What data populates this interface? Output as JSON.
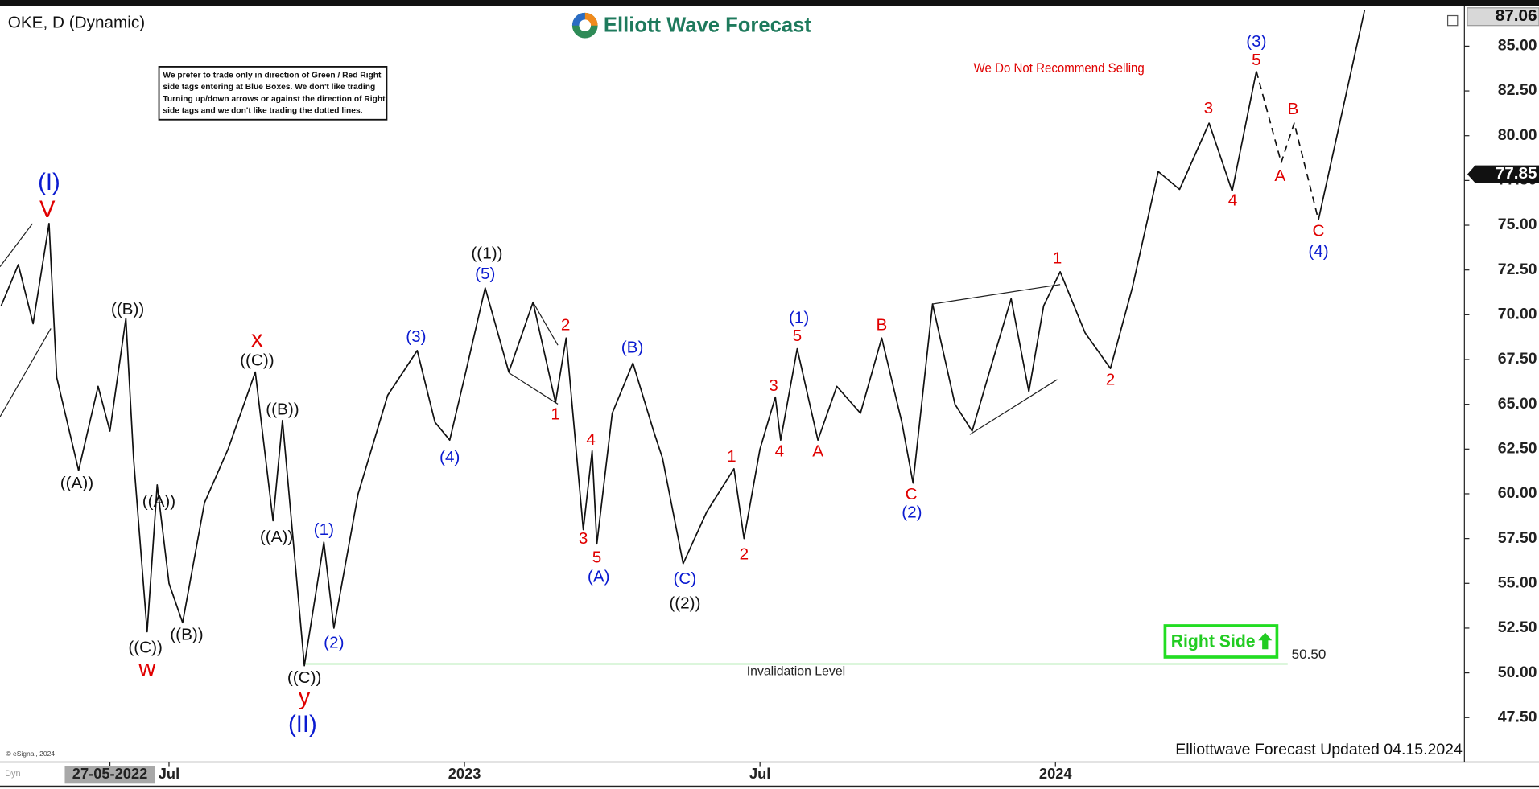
{
  "chart_data": {
    "type": "line",
    "symbol": "OKE, D (Dynamic)",
    "brand": "Elliott Wave Forecast",
    "notice": [
      "We prefer to trade only in direction of Green / Red Right",
      "side tags entering at Blue Boxes. We don't like trading",
      "Turning up/down arrows or against the direction of Right",
      "side tags and we don't like trading the dotted lines."
    ],
    "note": "We Do Not Recommend Selling",
    "badge": "Right Side",
    "footer": "Elliottwave Forecast Updated 04.15.2024",
    "copyright": "© eSignal, 2024",
    "mode": "Dyn",
    "xlim": [
      2022.214,
      2024.692
    ],
    "xticks": [
      {
        "value": 2022.4,
        "label": "27-05-2022"
      },
      {
        "value": 2022.5,
        "label": "Jul"
      },
      {
        "value": 2023,
        "label": "2023"
      },
      {
        "value": 2023.5,
        "label": "Jul"
      },
      {
        "value": 2024,
        "label": "2024"
      }
    ],
    "ylim": [
      45.13,
      87.14
    ],
    "yticks": [
      {
        "value": 47.5,
        "label": "47.50"
      },
      {
        "value": 50,
        "label": "50.00"
      },
      {
        "value": 52.5,
        "label": "52.50"
      },
      {
        "value": 55,
        "label": "55.00"
      },
      {
        "value": 57.5,
        "label": "57.50"
      },
      {
        "value": 60,
        "label": "60.00"
      },
      {
        "value": 62.5,
        "label": "62.50"
      },
      {
        "value": 65,
        "label": "65.00"
      },
      {
        "value": 67.5,
        "label": "67.50"
      },
      {
        "value": 70,
        "label": "70.00"
      },
      {
        "value": 72.5,
        "label": "72.50"
      },
      {
        "value": 75,
        "label": "75.00"
      },
      {
        "value": 77.5,
        "label": "77.50"
      },
      {
        "value": 80,
        "label": "80.00"
      },
      {
        "value": 82.5,
        "label": "82.50"
      },
      {
        "value": 85,
        "label": "85.00"
      }
    ],
    "high_price": 87.06,
    "last_price": 77.85,
    "series": [
      {
        "color": "#111111",
        "style": "solid",
        "x": [
          2022.216,
          2022.245,
          2022.27,
          2022.297,
          2022.31,
          2022.347,
          2022.38,
          2022.4,
          2022.427,
          2022.44,
          2022.463,
          2022.48,
          2022.5,
          2022.523,
          2022.56,
          2022.6,
          2022.646,
          2022.676,
          2022.692,
          2022.729,
          2022.762,
          2022.779,
          2022.82,
          2022.87,
          2022.92,
          2022.95,
          2022.975,
          2023.0,
          2023.035,
          2023.075,
          2023.116,
          2023.154,
          2023.172,
          2023.201,
          2023.216,
          2023.224,
          2023.25,
          2023.285,
          2023.32,
          2023.335,
          2023.37,
          2023.41,
          2023.456,
          2023.473,
          2023.5,
          2023.526,
          2023.535,
          2023.563,
          2023.598,
          2023.63,
          2023.67,
          2023.706,
          2023.74,
          2023.759,
          2023.792,
          2023.83,
          2023.859,
          2023.89,
          2023.925,
          2023.955,
          2023.98,
          2024.008,
          2024.05,
          2024.093,
          2024.13,
          2024.174,
          2024.21,
          2024.26,
          2024.299
        ],
        "values": [
          70.5,
          72.8,
          69.5,
          75.1,
          66.5,
          61.3,
          66.0,
          63.5,
          69.8,
          62.0,
          52.3,
          60.5,
          55.0,
          52.8,
          59.5,
          62.5,
          66.8,
          58.5,
          64.1,
          50.4,
          57.3,
          52.5,
          60.0,
          65.5,
          68.0,
          64.0,
          63.0,
          66.5,
          71.5,
          66.8,
          70.7,
          65.1,
          68.7,
          58.0,
          62.4,
          57.2,
          64.5,
          67.3,
          63.5,
          62.0,
          56.1,
          59.0,
          61.4,
          57.5,
          62.5,
          65.4,
          63.0,
          68.1,
          63.0,
          66.0,
          64.5,
          68.7,
          64.0,
          60.6,
          70.6,
          65.0,
          63.5,
          67.0,
          70.9,
          65.7,
          70.5,
          72.4,
          69.0,
          67.0,
          71.5,
          78.0,
          77.0,
          80.7,
          76.9
        ]
      },
      {
        "color": "#111111",
        "style": "solid",
        "x": [
          2024.299,
          2024.34,
          2024.4,
          2024.445,
          2024.523
        ],
        "values": [
          76.9,
          83.6,
          null,
          75.3,
          87.0
        ]
      },
      {
        "color": "#111111",
        "style": "dashed",
        "x": [
          2024.34,
          2024.382,
          2024.404,
          2024.445
        ],
        "values": [
          83.6,
          78.5,
          80.7,
          75.3
        ]
      }
    ],
    "trendlines": [
      {
        "x": [
          2022.214,
          2022.269
        ],
        "y": [
          72.68,
          75.09
        ]
      },
      {
        "x": [
          2022.214,
          2022.3
        ],
        "y": [
          64.3,
          69.23
        ]
      },
      {
        "x": [
          2023.075,
          2023.158
        ],
        "y": [
          66.76,
          65.01
        ]
      },
      {
        "x": [
          2023.116,
          2023.158
        ],
        "y": [
          70.7,
          68.3
        ]
      },
      {
        "x": [
          2023.792,
          2024.008
        ],
        "y": [
          70.6,
          71.69
        ]
      },
      {
        "x": [
          2023.855,
          2024.003
        ],
        "y": [
          63.31,
          66.38
        ]
      }
    ],
    "invalidation": {
      "value": 50.5,
      "label": "50.50",
      "text": "Invalidation Level",
      "x": [
        2022.729,
        2024.393
      ],
      "color": "#77dd77"
    },
    "annotations": [
      {
        "text": "(I)",
        "x": 2022.297,
        "y": 77.33,
        "color": "#0a1ad0",
        "large": true
      },
      {
        "text": "V",
        "x": 2022.294,
        "y": 75.8,
        "color": "#e00000",
        "large": true
      },
      {
        "text": "((A))",
        "x": 2022.344,
        "y": 60.57,
        "color": "#111111"
      },
      {
        "text": "((B))",
        "x": 2022.43,
        "y": 70.27,
        "color": "#111111"
      },
      {
        "text": "((A))",
        "x": 2022.483,
        "y": 59.53,
        "color": "#111111"
      },
      {
        "text": "((C))",
        "x": 2022.46,
        "y": 51.37,
        "color": "#111111"
      },
      {
        "text": "((B))",
        "x": 2022.53,
        "y": 52.09,
        "color": "#111111"
      },
      {
        "text": "w",
        "x": 2022.463,
        "y": 50.17,
        "color": "#e00000",
        "large": true
      },
      {
        "text": "x",
        "x": 2022.649,
        "y": 68.57,
        "color": "#e00000",
        "large": true
      },
      {
        "text": "((C))",
        "x": 2022.649,
        "y": 67.42,
        "color": "#111111"
      },
      {
        "text": "((B))",
        "x": 2022.692,
        "y": 64.68,
        "color": "#111111"
      },
      {
        "text": "((A))",
        "x": 2022.682,
        "y": 57.56,
        "color": "#111111"
      },
      {
        "text": "(1)",
        "x": 2022.762,
        "y": 57.95,
        "color": "#0a1ad0"
      },
      {
        "text": "(2)",
        "x": 2022.779,
        "y": 51.65,
        "color": "#0a1ad0"
      },
      {
        "text": "((C))",
        "x": 2022.729,
        "y": 49.68,
        "color": "#111111"
      },
      {
        "text": "y",
        "x": 2022.729,
        "y": 48.58,
        "color": "#e00000",
        "large": true
      },
      {
        "text": "(II)",
        "x": 2022.726,
        "y": 47.05,
        "color": "#0a1ad0",
        "large": true
      },
      {
        "text": "(3)",
        "x": 2022.918,
        "y": 68.73,
        "color": "#0a1ad0"
      },
      {
        "text": "(4)",
        "x": 2022.975,
        "y": 62.0,
        "color": "#0a1ad0"
      },
      {
        "text": "((1))",
        "x": 2023.038,
        "y": 73.39,
        "color": "#111111"
      },
      {
        "text": "(5)",
        "x": 2023.035,
        "y": 72.24,
        "color": "#0a1ad0"
      },
      {
        "text": "2",
        "x": 2023.171,
        "y": 69.39,
        "color": "#e00000"
      },
      {
        "text": "1",
        "x": 2023.154,
        "y": 64.41,
        "color": "#e00000"
      },
      {
        "text": "4",
        "x": 2023.214,
        "y": 62.98,
        "color": "#e00000"
      },
      {
        "text": "3",
        "x": 2023.201,
        "y": 57.45,
        "color": "#e00000"
      },
      {
        "text": "5",
        "x": 2023.224,
        "y": 56.41,
        "color": "#e00000"
      },
      {
        "text": "(A)",
        "x": 2023.227,
        "y": 55.32,
        "color": "#0a1ad0"
      },
      {
        "text": "(B)",
        "x": 2023.284,
        "y": 68.13,
        "color": "#0a1ad0"
      },
      {
        "text": "(C)",
        "x": 2023.373,
        "y": 55.21,
        "color": "#0a1ad0"
      },
      {
        "text": "((2))",
        "x": 2023.373,
        "y": 53.84,
        "color": "#111111"
      },
      {
        "text": "1",
        "x": 2023.452,
        "y": 62.05,
        "color": "#e00000"
      },
      {
        "text": "2",
        "x": 2023.473,
        "y": 56.58,
        "color": "#e00000"
      },
      {
        "text": "3",
        "x": 2023.523,
        "y": 66.0,
        "color": "#e00000"
      },
      {
        "text": "4",
        "x": 2023.533,
        "y": 62.33,
        "color": "#e00000"
      },
      {
        "text": "(1)",
        "x": 2023.566,
        "y": 69.78,
        "color": "#0a1ad0"
      },
      {
        "text": "5",
        "x": 2023.563,
        "y": 68.79,
        "color": "#e00000"
      },
      {
        "text": "A",
        "x": 2023.598,
        "y": 62.33,
        "color": "#e00000"
      },
      {
        "text": "B",
        "x": 2023.706,
        "y": 69.39,
        "color": "#e00000"
      },
      {
        "text": "C",
        "x": 2023.756,
        "y": 59.92,
        "color": "#e00000"
      },
      {
        "text": "(2)",
        "x": 2023.757,
        "y": 58.93,
        "color": "#0a1ad0"
      },
      {
        "text": "1",
        "x": 2024.003,
        "y": 73.12,
        "color": "#e00000"
      },
      {
        "text": "2",
        "x": 2024.093,
        "y": 66.33,
        "color": "#e00000"
      },
      {
        "text": "3",
        "x": 2024.259,
        "y": 81.5,
        "color": "#e00000"
      },
      {
        "text": "4",
        "x": 2024.3,
        "y": 76.35,
        "color": "#e00000"
      },
      {
        "text": "(3)",
        "x": 2024.34,
        "y": 85.22,
        "color": "#0a1ad0"
      },
      {
        "text": "5",
        "x": 2024.34,
        "y": 84.18,
        "color": "#e00000"
      },
      {
        "text": "A",
        "x": 2024.38,
        "y": 77.72,
        "color": "#e00000"
      },
      {
        "text": "B",
        "x": 2024.402,
        "y": 81.44,
        "color": "#e00000"
      },
      {
        "text": "C",
        "x": 2024.445,
        "y": 74.65,
        "color": "#e00000"
      },
      {
        "text": "(4)",
        "x": 2024.445,
        "y": 73.5,
        "color": "#0a1ad0"
      }
    ]
  }
}
